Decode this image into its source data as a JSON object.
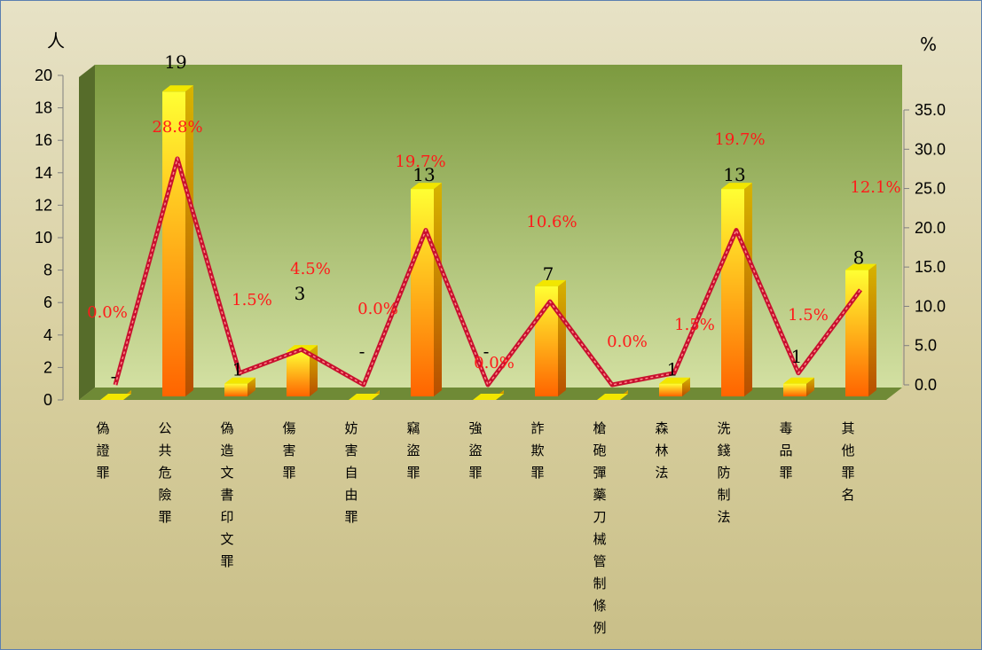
{
  "chart_data": {
    "type": "bar",
    "title": "",
    "categories": [
      "偽證罪",
      "公共危險罪",
      "偽造文書印文罪",
      "傷害罪",
      "妨害自由罪",
      "竊盜罪",
      "強盜罪",
      "詐欺罪",
      "槍砲彈藥刀械管制條例",
      "森林法",
      "洗錢防制法",
      "毒品罪",
      "其他罪名"
    ],
    "series": [
      {
        "type": "bar",
        "axis": "left",
        "values": [
          0,
          19,
          1,
          3,
          0,
          13,
          0,
          7,
          0,
          1,
          13,
          1,
          8
        ],
        "labels": [
          "-",
          "19",
          "1",
          "3",
          "-",
          "13",
          "-",
          "7",
          "",
          "1",
          "13",
          "1",
          "8"
        ]
      },
      {
        "type": "line",
        "axis": "right",
        "values": [
          0.0,
          28.8,
          1.5,
          4.5,
          0.0,
          19.7,
          0.0,
          10.6,
          0.0,
          1.5,
          19.7,
          1.5,
          12.1
        ],
        "labels": [
          "0.0%",
          "28.8%",
          "1.5%",
          "4.5%",
          "0.0%",
          "19.7%",
          "0.0%",
          "10.6%",
          "0.0%",
          "1.5%",
          "19.7%",
          "1.5%",
          "12.1%"
        ]
      }
    ],
    "y_left": {
      "unit": "人",
      "ylim": [
        0,
        20
      ],
      "ticks": [
        "0",
        "2",
        "4",
        "6",
        "8",
        "10",
        "12",
        "14",
        "16",
        "18",
        "20"
      ]
    },
    "y_right": {
      "unit": "%",
      "ylim": [
        0,
        35
      ],
      "ticks": [
        "0.0",
        "5.0",
        "10.0",
        "15.0",
        "20.0",
        "25.0",
        "30.0",
        "35.0"
      ]
    },
    "grid": false,
    "legend": "none",
    "colors": {
      "bar_top": "#ffff33",
      "bar_bottom": "#ff6a00",
      "bar_side": "#d9a300",
      "line": "#c8102e",
      "line_dash": "#ff8a8a",
      "percent_label": "#ff1a1a",
      "wall_top": "#7c9a3f",
      "wall_bottom": "#cfdd9c",
      "floor": "#6f8a36"
    }
  }
}
